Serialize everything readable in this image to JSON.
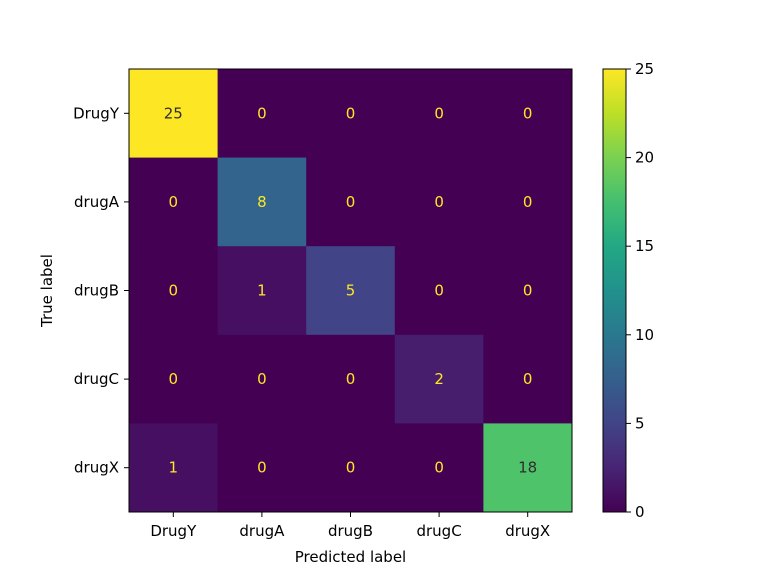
{
  "chart_data": {
    "type": "heatmap",
    "title": "",
    "xlabel": "Predicted label",
    "ylabel": "True label",
    "x_categories": [
      "DrugY",
      "drugA",
      "drugB",
      "drugC",
      "drugX"
    ],
    "y_categories": [
      "DrugY",
      "drugA",
      "drugB",
      "drugC",
      "drugX"
    ],
    "matrix": [
      [
        25,
        0,
        0,
        0,
        0
      ],
      [
        0,
        8,
        0,
        0,
        0
      ],
      [
        0,
        1,
        5,
        0,
        0
      ],
      [
        0,
        0,
        0,
        2,
        0
      ],
      [
        1,
        0,
        0,
        0,
        18
      ]
    ],
    "colormap": "viridis",
    "value_range": [
      0,
      25
    ],
    "colorbar_ticks": [
      0,
      5,
      10,
      15,
      20,
      25
    ],
    "grid": false,
    "colorbar_position": "right"
  }
}
